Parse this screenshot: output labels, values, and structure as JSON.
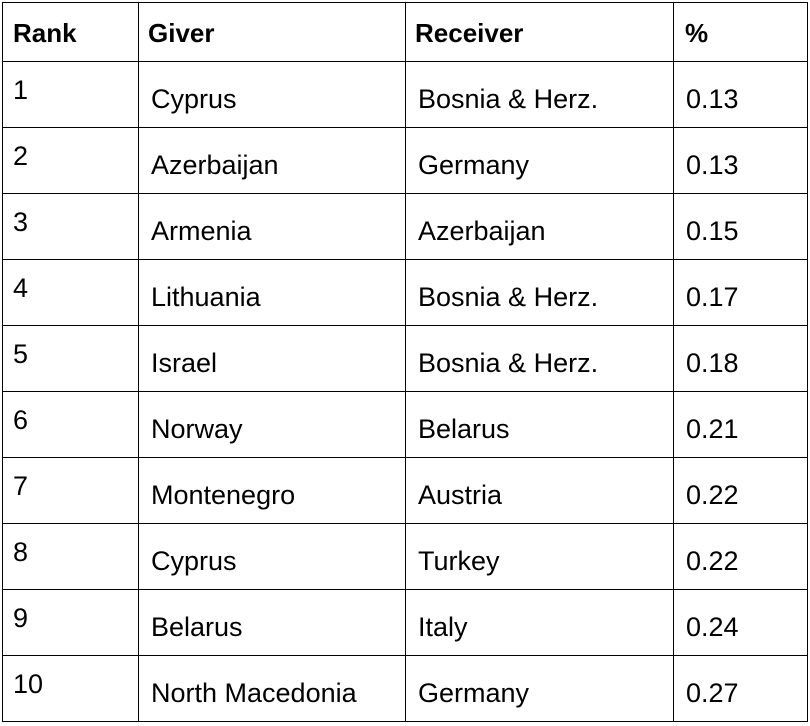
{
  "table": {
    "headers": {
      "rank": "Rank",
      "giver": "Giver",
      "receiver": "Receiver",
      "percent": "%"
    },
    "rows": [
      {
        "rank": "1",
        "giver": "Cyprus",
        "receiver": "Bosnia & Herz.",
        "percent": "0.13"
      },
      {
        "rank": "2",
        "giver": "Azerbaijan",
        "receiver": "Germany",
        "percent": "0.13"
      },
      {
        "rank": "3",
        "giver": "Armenia",
        "receiver": "Azerbaijan",
        "percent": "0.15"
      },
      {
        "rank": "4",
        "giver": "Lithuania",
        "receiver": "Bosnia & Herz.",
        "percent": "0.17"
      },
      {
        "rank": "5",
        "giver": "Israel",
        "receiver": "Bosnia & Herz.",
        "percent": "0.18"
      },
      {
        "rank": "6",
        "giver": "Norway",
        "receiver": "Belarus",
        "percent": "0.21"
      },
      {
        "rank": "7",
        "giver": "Montenegro",
        "receiver": "Austria",
        "percent": "0.22"
      },
      {
        "rank": "8",
        "giver": "Cyprus",
        "receiver": "Turkey",
        "percent": "0.22"
      },
      {
        "rank": "9",
        "giver": "Belarus",
        "receiver": "Italy",
        "percent": "0.24"
      },
      {
        "rank": "10",
        "giver": "North Macedonia",
        "receiver": "Germany",
        "percent": "0.27"
      }
    ]
  }
}
